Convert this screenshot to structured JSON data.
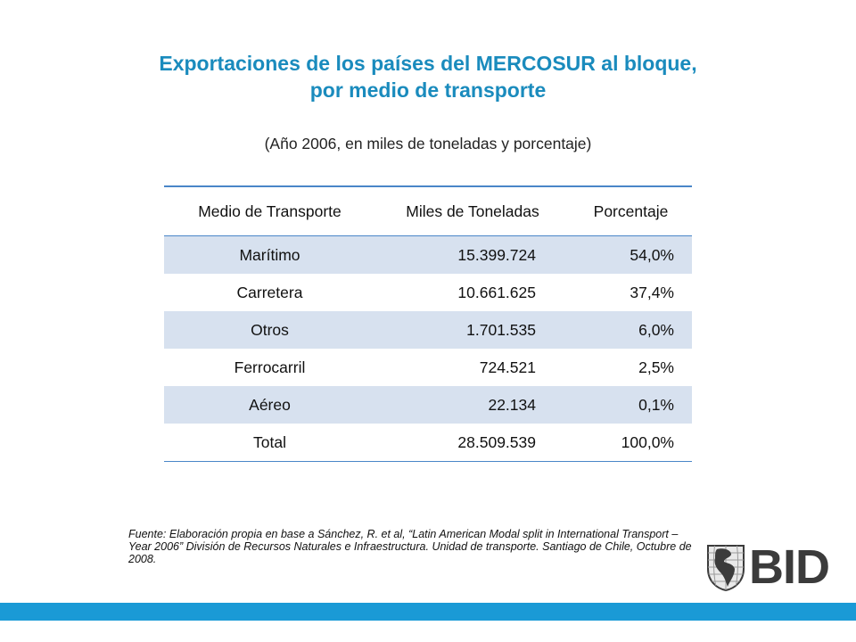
{
  "slide": {
    "title_line1": "Exportaciones de los países del MERCOSUR al bloque,",
    "title_line2": "por medio de transporte",
    "subtitle": "(Año 2006, en miles de toneladas y porcentaje)"
  },
  "table": {
    "headers": [
      "Medio de Transporte",
      "Miles de Toneladas",
      "Porcentaje"
    ],
    "rows": [
      [
        "Marítimo",
        "15.399.724",
        "54,0%"
      ],
      [
        "Carretera",
        "10.661.625",
        "37,4%"
      ],
      [
        "Otros",
        "1.701.535",
        "6,0%"
      ],
      [
        "Ferrocarril",
        "724.521",
        "2,5%"
      ],
      [
        "Aéreo",
        "22.134",
        "0,1%"
      ],
      [
        "Total",
        "28.509.539",
        "100,0%"
      ]
    ]
  },
  "source": "Fuente: Elaboración propia en base a Sánchez, R. et al, “Latin American Modal split in International Transport – Year 2006” División de Recursos Naturales e Infraestructura. Unidad de transporte. Santiago de Chile, Octubre de 2008.",
  "logo": {
    "text": "BID",
    "icon": "globe-americas-icon"
  },
  "colors": {
    "title": "#1a8bbd",
    "row_band": "#d7e1ef",
    "rule": "#4a86c8",
    "bottom_bar": "#1a9ad6"
  }
}
